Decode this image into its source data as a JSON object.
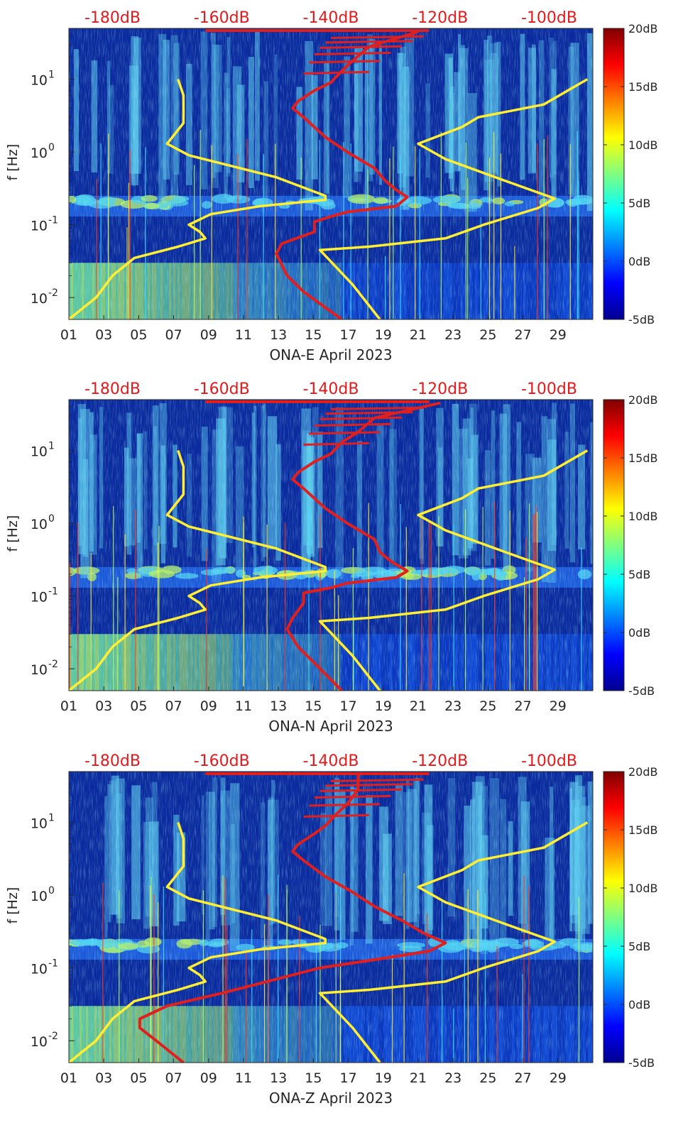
{
  "colors": {
    "background_deep": "#0a2a9e",
    "background_mid": "#1f5fe0",
    "speckle": "#5fd0f0",
    "noise_model_line": "#ffee33",
    "red_line": "#e01f1f",
    "top_label": "#e31a1c",
    "colorbar_stops": [
      "#00008f",
      "#0000ff",
      "#0080ff",
      "#00ffff",
      "#80ff80",
      "#ffff00",
      "#ff8000",
      "#ff0000",
      "#800000"
    ]
  },
  "chart_data": [
    {
      "type": "heatmap",
      "xlabel": "ONA-E April 2023",
      "ylabel": "f [Hz]",
      "x_ticks": [
        "01",
        "03",
        "05",
        "07",
        "09",
        "11",
        "13",
        "15",
        "17",
        "19",
        "21",
        "23",
        "25",
        "27",
        "29"
      ],
      "x_range_days": [
        1,
        31
      ],
      "y_ticks": [
        "10-2",
        "10-1",
        "100",
        "101"
      ],
      "y_scale": "log",
      "y_range_hz": [
        0.005,
        50
      ],
      "top_axis_ticks": [
        "-180dB",
        "-160dB",
        "-140dB",
        "-120dB",
        "-100dB"
      ],
      "top_axis_range_db": [
        -188,
        -92
      ],
      "colorbar_ticks": [
        "20dB",
        "15dB",
        "10dB",
        "5dB",
        "0dB",
        "-5dB"
      ],
      "colorbar_range_db": [
        -5,
        20
      ],
      "yellow_curves": [
        {
          "points": [
            [
              -188,
              0.005
            ],
            [
              -183,
              0.01
            ],
            [
              -180,
              0.02
            ],
            [
              -176,
              0.035
            ],
            [
              -168,
              0.05
            ],
            [
              -163,
              0.065
            ],
            [
              -164,
              0.08
            ],
            [
              -166,
              0.1
            ],
            [
              -162,
              0.14
            ],
            [
              -153,
              0.18
            ],
            [
              -141,
              0.22
            ],
            [
              -141,
              0.25
            ],
            [
              -150,
              0.45
            ],
            [
              -166,
              0.9
            ],
            [
              -170,
              1.3
            ],
            [
              -167,
              2.5
            ],
            [
              -167,
              4
            ],
            [
              -167,
              6
            ],
            [
              -168,
              10
            ]
          ]
        },
        {
          "points": [
            [
              -131,
              0.005
            ],
            [
              -136,
              0.015
            ],
            [
              -142,
              0.045
            ],
            [
              -133,
              0.05
            ],
            [
              -119,
              0.065
            ],
            [
              -112,
              0.1
            ],
            [
              -102,
              0.17
            ],
            [
              -99,
              0.23
            ],
            [
              -108,
              0.4
            ],
            [
              -119,
              0.8
            ],
            [
              -124,
              1.3
            ],
            [
              -116,
              2.2
            ],
            [
              -113,
              3
            ],
            [
              -101,
              4.5
            ],
            [
              -93,
              10
            ]
          ]
        }
      ],
      "red_curve": [
        [
          -138,
          0.005
        ],
        [
          -145,
          0.012
        ],
        [
          -148,
          0.02
        ],
        [
          -150,
          0.04
        ],
        [
          -149,
          0.055
        ],
        [
          -143,
          0.08
        ],
        [
          -143,
          0.11
        ],
        [
          -140,
          0.13
        ],
        [
          -137,
          0.15
        ],
        [
          -128,
          0.18
        ],
        [
          -126,
          0.24
        ],
        [
          -128,
          0.3
        ],
        [
          -130,
          0.4
        ],
        [
          -132,
          0.6
        ],
        [
          -137,
          1.0
        ],
        [
          -141,
          1.6
        ],
        [
          -145,
          3.0
        ],
        [
          -147,
          4.0
        ],
        [
          -146,
          5
        ],
        [
          -143,
          7
        ],
        [
          -140,
          9
        ],
        [
          -138,
          13
        ],
        [
          -136,
          18
        ],
        [
          -133,
          28
        ],
        [
          -124,
          45
        ]
      ]
    },
    {
      "type": "heatmap",
      "xlabel": "ONA-N April 2023",
      "ylabel": "f [Hz]",
      "x_ticks": [
        "01",
        "03",
        "05",
        "07",
        "09",
        "11",
        "13",
        "15",
        "17",
        "19",
        "21",
        "23",
        "25",
        "27",
        "29"
      ],
      "x_range_days": [
        1,
        31
      ],
      "y_ticks": [
        "10-2",
        "10-1",
        "100",
        "101"
      ],
      "y_scale": "log",
      "y_range_hz": [
        0.005,
        50
      ],
      "top_axis_ticks": [
        "-180dB",
        "-160dB",
        "-140dB",
        "-120dB",
        "-100dB"
      ],
      "top_axis_range_db": [
        -188,
        -92
      ],
      "colorbar_ticks": [
        "20dB",
        "15dB",
        "10dB",
        "5dB",
        "0dB",
        "-5dB"
      ],
      "colorbar_range_db": [
        -5,
        20
      ],
      "yellow_curves": [
        {
          "points": [
            [
              -188,
              0.005
            ],
            [
              -183,
              0.01
            ],
            [
              -180,
              0.02
            ],
            [
              -176,
              0.035
            ],
            [
              -168,
              0.05
            ],
            [
              -163,
              0.065
            ],
            [
              -164,
              0.08
            ],
            [
              -166,
              0.1
            ],
            [
              -162,
              0.14
            ],
            [
              -153,
              0.18
            ],
            [
              -141,
              0.22
            ],
            [
              -141,
              0.25
            ],
            [
              -150,
              0.45
            ],
            [
              -166,
              0.9
            ],
            [
              -170,
              1.3
            ],
            [
              -167,
              2.5
            ],
            [
              -167,
              4
            ],
            [
              -167,
              6
            ],
            [
              -168,
              10
            ]
          ]
        },
        {
          "points": [
            [
              -131,
              0.005
            ],
            [
              -136,
              0.015
            ],
            [
              -142,
              0.045
            ],
            [
              -133,
              0.05
            ],
            [
              -119,
              0.065
            ],
            [
              -112,
              0.1
            ],
            [
              -102,
              0.17
            ],
            [
              -99,
              0.23
            ],
            [
              -108,
              0.4
            ],
            [
              -119,
              0.8
            ],
            [
              -124,
              1.3
            ],
            [
              -116,
              2.2
            ],
            [
              -113,
              3
            ],
            [
              -101,
              4.5
            ],
            [
              -93,
              10
            ]
          ]
        }
      ],
      "red_curve": [
        [
          -138,
          0.005
        ],
        [
          -143,
          0.012
        ],
        [
          -146,
          0.02
        ],
        [
          -148,
          0.035
        ],
        [
          -147,
          0.05
        ],
        [
          -145,
          0.08
        ],
        [
          -145,
          0.11
        ],
        [
          -140,
          0.13
        ],
        [
          -137,
          0.15
        ],
        [
          -128,
          0.18
        ],
        [
          -126,
          0.22
        ],
        [
          -129,
          0.3
        ],
        [
          -131,
          0.4
        ],
        [
          -132,
          0.6
        ],
        [
          -137,
          1.0
        ],
        [
          -141,
          1.6
        ],
        [
          -145,
          3.0
        ],
        [
          -147,
          4.0
        ],
        [
          -146,
          5
        ],
        [
          -143,
          7
        ],
        [
          -140,
          9
        ],
        [
          -138,
          13
        ],
        [
          -135,
          18
        ],
        [
          -132,
          28
        ],
        [
          -120,
          45
        ]
      ]
    },
    {
      "type": "heatmap",
      "xlabel": "ONA-Z April 2023",
      "ylabel": "f [Hz]",
      "x_ticks": [
        "01",
        "03",
        "05",
        "07",
        "09",
        "11",
        "13",
        "15",
        "17",
        "19",
        "21",
        "23",
        "25",
        "27",
        "29"
      ],
      "x_range_days": [
        1,
        31
      ],
      "y_ticks": [
        "10-2",
        "10-1",
        "100",
        "101"
      ],
      "y_scale": "log",
      "y_range_hz": [
        0.005,
        50
      ],
      "top_axis_ticks": [
        "-180dB",
        "-160dB",
        "-140dB",
        "-120dB",
        "-100dB"
      ],
      "top_axis_range_db": [
        -188,
        -92
      ],
      "colorbar_ticks": [
        "20dB",
        "15dB",
        "10dB",
        "5dB",
        "0dB",
        "-5dB"
      ],
      "colorbar_range_db": [
        -5,
        20
      ],
      "yellow_curves": [
        {
          "points": [
            [
              -188,
              0.005
            ],
            [
              -183,
              0.01
            ],
            [
              -180,
              0.02
            ],
            [
              -176,
              0.035
            ],
            [
              -168,
              0.05
            ],
            [
              -163,
              0.065
            ],
            [
              -164,
              0.08
            ],
            [
              -166,
              0.1
            ],
            [
              -162,
              0.14
            ],
            [
              -153,
              0.18
            ],
            [
              -141,
              0.22
            ],
            [
              -141,
              0.25
            ],
            [
              -150,
              0.45
            ],
            [
              -166,
              0.9
            ],
            [
              -170,
              1.3
            ],
            [
              -167,
              2.5
            ],
            [
              -167,
              4
            ],
            [
              -167,
              6
            ],
            [
              -168,
              10
            ]
          ]
        },
        {
          "points": [
            [
              -131,
              0.005
            ],
            [
              -136,
              0.015
            ],
            [
              -142,
              0.045
            ],
            [
              -133,
              0.05
            ],
            [
              -119,
              0.065
            ],
            [
              -112,
              0.1
            ],
            [
              -102,
              0.17
            ],
            [
              -99,
              0.23
            ],
            [
              -108,
              0.4
            ],
            [
              -119,
              0.8
            ],
            [
              -124,
              1.3
            ],
            [
              -116,
              2.2
            ],
            [
              -113,
              3
            ],
            [
              -101,
              4.5
            ],
            [
              -93,
              10
            ]
          ]
        }
      ],
      "red_curve": [
        [
          -167,
          0.005
        ],
        [
          -172,
          0.01
        ],
        [
          -175,
          0.015
        ],
        [
          -175,
          0.02
        ],
        [
          -170,
          0.03
        ],
        [
          -160,
          0.045
        ],
        [
          -150,
          0.07
        ],
        [
          -142,
          0.1
        ],
        [
          -132,
          0.13
        ],
        [
          -122,
          0.17
        ],
        [
          -119,
          0.22
        ],
        [
          -123,
          0.3
        ],
        [
          -127,
          0.45
        ],
        [
          -132,
          0.7
        ],
        [
          -136,
          1.1
        ],
        [
          -141,
          1.8
        ],
        [
          -145,
          3.0
        ],
        [
          -147,
          4.0
        ],
        [
          -146,
          5
        ],
        [
          -143,
          7
        ],
        [
          -141,
          9
        ],
        [
          -139,
          13
        ],
        [
          -137,
          18
        ],
        [
          -135,
          28
        ],
        [
          -135,
          45
        ]
      ]
    }
  ]
}
